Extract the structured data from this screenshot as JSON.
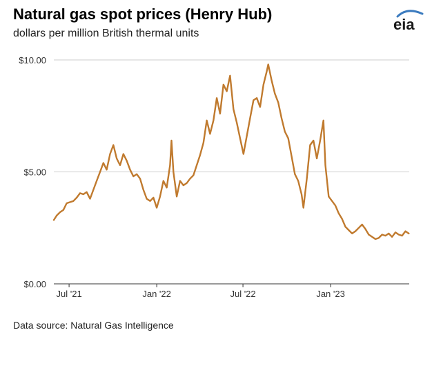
{
  "header": {
    "title": "Natural gas spot prices (Henry Hub)",
    "subtitle": "dollars per million British thermal units",
    "logo_text": "eia"
  },
  "footer": {
    "source": "Data source: Natural Gas Intelligence"
  },
  "colors": {
    "series": "#c07a2e",
    "grid": "#cccccc",
    "axis": "#333333",
    "logo_arc": "#3b7bbf"
  },
  "chart_data": {
    "type": "line",
    "title": "Natural gas spot prices (Henry Hub)",
    "subtitle": "dollars per million British thermal units",
    "xlabel": "",
    "ylabel": "",
    "y_ticks": [
      {
        "value": 0,
        "label": "$0.00"
      },
      {
        "value": 5,
        "label": "$5.00"
      },
      {
        "value": 10,
        "label": "$10.00"
      }
    ],
    "x_ticks": [
      {
        "date": "2021-07-01",
        "label": "Jul '21"
      },
      {
        "date": "2022-01-01",
        "label": "Jan '22"
      },
      {
        "date": "2022-07-01",
        "label": "Jul '22"
      },
      {
        "date": "2023-01-01",
        "label": "Jan '23"
      }
    ],
    "xlim": [
      "2021-05-30",
      "2023-06-15"
    ],
    "ylim": [
      0,
      10
    ],
    "grid": true,
    "legend": "none",
    "series": [
      {
        "color": "#c07a2e",
        "points": [
          [
            "2021-05-30",
            2.85
          ],
          [
            "2021-06-05",
            3.05
          ],
          [
            "2021-06-12",
            3.2
          ],
          [
            "2021-06-19",
            3.3
          ],
          [
            "2021-06-26",
            3.6
          ],
          [
            "2021-07-03",
            3.65
          ],
          [
            "2021-07-10",
            3.7
          ],
          [
            "2021-07-17",
            3.85
          ],
          [
            "2021-07-24",
            4.05
          ],
          [
            "2021-07-31",
            4.0
          ],
          [
            "2021-08-07",
            4.1
          ],
          [
            "2021-08-14",
            3.8
          ],
          [
            "2021-08-21",
            4.2
          ],
          [
            "2021-08-28",
            4.6
          ],
          [
            "2021-09-04",
            5.0
          ],
          [
            "2021-09-11",
            5.4
          ],
          [
            "2021-09-18",
            5.1
          ],
          [
            "2021-09-25",
            5.8
          ],
          [
            "2021-10-02",
            6.2
          ],
          [
            "2021-10-09",
            5.6
          ],
          [
            "2021-10-16",
            5.3
          ],
          [
            "2021-10-23",
            5.8
          ],
          [
            "2021-10-30",
            5.5
          ],
          [
            "2021-11-06",
            5.1
          ],
          [
            "2021-11-13",
            4.8
          ],
          [
            "2021-11-20",
            4.9
          ],
          [
            "2021-11-27",
            4.7
          ],
          [
            "2021-12-04",
            4.2
          ],
          [
            "2021-12-11",
            3.8
          ],
          [
            "2021-12-18",
            3.7
          ],
          [
            "2021-12-25",
            3.85
          ],
          [
            "2022-01-01",
            3.4
          ],
          [
            "2022-01-08",
            3.9
          ],
          [
            "2022-01-15",
            4.6
          ],
          [
            "2022-01-22",
            4.3
          ],
          [
            "2022-01-29",
            5.3
          ],
          [
            "2022-02-01",
            6.4
          ],
          [
            "2022-02-05",
            5.0
          ],
          [
            "2022-02-12",
            3.9
          ],
          [
            "2022-02-19",
            4.6
          ],
          [
            "2022-02-26",
            4.4
          ],
          [
            "2022-03-05",
            4.5
          ],
          [
            "2022-03-12",
            4.7
          ],
          [
            "2022-03-19",
            4.85
          ],
          [
            "2022-03-26",
            5.3
          ],
          [
            "2022-04-02",
            5.75
          ],
          [
            "2022-04-09",
            6.3
          ],
          [
            "2022-04-16",
            7.3
          ],
          [
            "2022-04-23",
            6.7
          ],
          [
            "2022-04-30",
            7.3
          ],
          [
            "2022-05-07",
            8.3
          ],
          [
            "2022-05-14",
            7.6
          ],
          [
            "2022-05-21",
            8.9
          ],
          [
            "2022-05-28",
            8.6
          ],
          [
            "2022-06-04",
            9.3
          ],
          [
            "2022-06-11",
            7.8
          ],
          [
            "2022-06-18",
            7.2
          ],
          [
            "2022-06-25",
            6.5
          ],
          [
            "2022-07-02",
            5.8
          ],
          [
            "2022-07-09",
            6.6
          ],
          [
            "2022-07-16",
            7.4
          ],
          [
            "2022-07-23",
            8.2
          ],
          [
            "2022-07-30",
            8.3
          ],
          [
            "2022-08-06",
            7.9
          ],
          [
            "2022-08-13",
            8.9
          ],
          [
            "2022-08-20",
            9.5
          ],
          [
            "2022-08-23",
            9.8
          ],
          [
            "2022-08-30",
            9.1
          ],
          [
            "2022-09-06",
            8.5
          ],
          [
            "2022-09-13",
            8.1
          ],
          [
            "2022-09-20",
            7.4
          ],
          [
            "2022-09-27",
            6.8
          ],
          [
            "2022-10-04",
            6.5
          ],
          [
            "2022-10-11",
            5.7
          ],
          [
            "2022-10-18",
            4.9
          ],
          [
            "2022-10-25",
            4.6
          ],
          [
            "2022-11-01",
            4.0
          ],
          [
            "2022-11-05",
            3.4
          ],
          [
            "2022-11-12",
            4.7
          ],
          [
            "2022-11-19",
            6.2
          ],
          [
            "2022-11-26",
            6.4
          ],
          [
            "2022-12-03",
            5.6
          ],
          [
            "2022-12-10",
            6.4
          ],
          [
            "2022-12-17",
            7.3
          ],
          [
            "2022-12-21",
            5.3
          ],
          [
            "2022-12-28",
            3.9
          ],
          [
            "2023-01-04",
            3.7
          ],
          [
            "2023-01-11",
            3.5
          ],
          [
            "2023-01-18",
            3.15
          ],
          [
            "2023-01-25",
            2.9
          ],
          [
            "2023-02-01",
            2.55
          ],
          [
            "2023-02-08",
            2.4
          ],
          [
            "2023-02-15",
            2.25
          ],
          [
            "2023-02-22",
            2.35
          ],
          [
            "2023-03-01",
            2.5
          ],
          [
            "2023-03-08",
            2.65
          ],
          [
            "2023-03-15",
            2.45
          ],
          [
            "2023-03-22",
            2.2
          ],
          [
            "2023-03-29",
            2.1
          ],
          [
            "2023-04-05",
            2.0
          ],
          [
            "2023-04-12",
            2.05
          ],
          [
            "2023-04-19",
            2.2
          ],
          [
            "2023-04-26",
            2.15
          ],
          [
            "2023-05-03",
            2.25
          ],
          [
            "2023-05-10",
            2.1
          ],
          [
            "2023-05-17",
            2.3
          ],
          [
            "2023-05-24",
            2.2
          ],
          [
            "2023-05-31",
            2.15
          ],
          [
            "2023-06-07",
            2.35
          ],
          [
            "2023-06-14",
            2.25
          ]
        ]
      }
    ]
  }
}
